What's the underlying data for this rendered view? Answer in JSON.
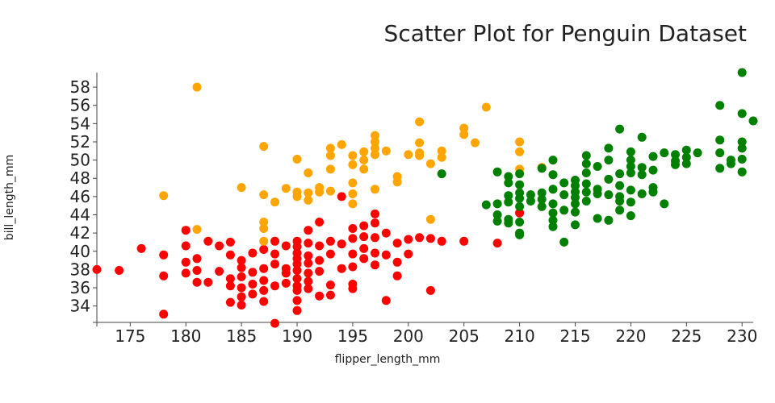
{
  "chart_data": {
    "type": "scatter",
    "title": "Scatter Plot for Penguin Dataset",
    "xlabel": "flipper_length_mm",
    "ylabel": "bill_length_mm",
    "xlim": [
      172,
      231
    ],
    "ylim": [
      32.2,
      59.6
    ],
    "xticks": [
      175,
      180,
      185,
      190,
      195,
      200,
      205,
      210,
      215,
      220,
      225,
      230
    ],
    "yticks": [
      34,
      36,
      38,
      40,
      42,
      44,
      46,
      48,
      50,
      52,
      54,
      56,
      58
    ],
    "grid": false,
    "colors": [
      "#ff0000",
      "#ffa500",
      "#008000"
    ],
    "series": [
      {
        "color": "#ff0000",
        "points": [
          [
            172,
            38.0
          ],
          [
            174,
            37.9
          ],
          [
            176,
            40.3
          ],
          [
            178,
            39.6
          ],
          [
            178,
            37.3
          ],
          [
            178,
            33.1
          ],
          [
            180,
            42.3
          ],
          [
            180,
            40.6
          ],
          [
            180,
            38.8
          ],
          [
            180,
            37.6
          ],
          [
            181,
            39.2
          ],
          [
            181,
            37.9
          ],
          [
            181,
            36.6
          ],
          [
            182,
            41.1
          ],
          [
            182,
            36.6
          ],
          [
            183,
            40.6
          ],
          [
            183,
            37.8
          ],
          [
            184,
            41.0
          ],
          [
            184,
            39.6
          ],
          [
            184,
            37.0
          ],
          [
            184,
            36.2
          ],
          [
            184,
            34.4
          ],
          [
            185,
            39.0
          ],
          [
            185,
            38.2
          ],
          [
            185,
            37.2
          ],
          [
            185,
            36.0
          ],
          [
            185,
            35.0
          ],
          [
            185,
            34.1
          ],
          [
            186,
            39.8
          ],
          [
            186,
            37.7
          ],
          [
            186,
            36.4
          ],
          [
            186,
            35.3
          ],
          [
            187,
            40.2
          ],
          [
            187,
            38.1
          ],
          [
            187,
            36.8
          ],
          [
            187,
            35.7
          ],
          [
            187,
            34.5
          ],
          [
            188,
            41.1
          ],
          [
            188,
            39.7
          ],
          [
            188,
            38.6
          ],
          [
            188,
            36.2
          ],
          [
            188,
            32.1
          ],
          [
            189,
            40.6
          ],
          [
            189,
            38.1
          ],
          [
            189,
            37.6
          ],
          [
            189,
            36.5
          ],
          [
            190,
            41.1
          ],
          [
            190,
            40.5
          ],
          [
            190,
            39.8
          ],
          [
            190,
            39.2
          ],
          [
            190,
            38.6
          ],
          [
            190,
            37.9
          ],
          [
            190,
            37.0
          ],
          [
            190,
            36.2
          ],
          [
            190,
            35.7
          ],
          [
            190,
            34.6
          ],
          [
            190,
            33.5
          ],
          [
            191,
            42.3
          ],
          [
            191,
            40.9
          ],
          [
            191,
            39.5
          ],
          [
            191,
            38.7
          ],
          [
            191,
            37.6
          ],
          [
            191,
            36.7
          ],
          [
            191,
            35.9
          ],
          [
            192,
            43.2
          ],
          [
            192,
            40.6
          ],
          [
            192,
            39.0
          ],
          [
            192,
            37.8
          ],
          [
            192,
            35.1
          ],
          [
            193,
            41.1
          ],
          [
            193,
            39.7
          ],
          [
            193,
            36.3
          ],
          [
            193,
            35.2
          ],
          [
            194,
            46.0
          ],
          [
            194,
            40.8
          ],
          [
            194,
            38.1
          ],
          [
            195,
            42.5
          ],
          [
            195,
            41.4
          ],
          [
            195,
            39.7
          ],
          [
            195,
            38.3
          ],
          [
            195,
            36.4
          ],
          [
            195,
            35.9
          ],
          [
            196,
            42.8
          ],
          [
            196,
            41.6
          ],
          [
            196,
            40.3
          ],
          [
            196,
            39.2
          ],
          [
            197,
            44.1
          ],
          [
            197,
            43.1
          ],
          [
            197,
            41.5
          ],
          [
            197,
            39.8
          ],
          [
            197,
            38.5
          ],
          [
            198,
            42.0
          ],
          [
            198,
            39.6
          ],
          [
            198,
            34.6
          ],
          [
            199,
            40.9
          ],
          [
            199,
            38.8
          ],
          [
            199,
            37.3
          ],
          [
            200,
            41.3
          ],
          [
            200,
            39.7
          ],
          [
            201,
            41.5
          ],
          [
            202,
            41.4
          ],
          [
            202,
            35.7
          ],
          [
            203,
            41.1
          ],
          [
            205,
            41.1
          ],
          [
            208,
            40.9
          ],
          [
            210,
            44.2
          ]
        ]
      },
      {
        "color": "#ffa500",
        "points": [
          [
            178,
            46.1
          ],
          [
            181,
            58.0
          ],
          [
            181,
            42.4
          ],
          [
            185,
            47.0
          ],
          [
            187,
            51.5
          ],
          [
            187,
            46.2
          ],
          [
            187,
            43.2
          ],
          [
            187,
            42.5
          ],
          [
            187,
            41.1
          ],
          [
            188,
            45.4
          ],
          [
            189,
            46.9
          ],
          [
            190,
            50.1
          ],
          [
            190,
            46.5
          ],
          [
            190,
            46.0
          ],
          [
            191,
            48.6
          ],
          [
            191,
            46.4
          ],
          [
            191,
            45.6
          ],
          [
            192,
            47.0
          ],
          [
            192,
            46.5
          ],
          [
            193,
            51.3
          ],
          [
            193,
            50.5
          ],
          [
            193,
            49.0
          ],
          [
            193,
            46.6
          ],
          [
            194,
            51.7
          ],
          [
            195,
            50.5
          ],
          [
            195,
            49.5
          ],
          [
            195,
            47.5
          ],
          [
            195,
            46.3
          ],
          [
            195,
            45.2
          ],
          [
            196,
            50.9
          ],
          [
            196,
            50.0
          ],
          [
            196,
            49.0
          ],
          [
            197,
            52.7
          ],
          [
            197,
            52.0
          ],
          [
            197,
            51.3
          ],
          [
            197,
            50.6
          ],
          [
            197,
            46.8
          ],
          [
            198,
            51.0
          ],
          [
            199,
            48.2
          ],
          [
            199,
            47.6
          ],
          [
            200,
            50.6
          ],
          [
            201,
            54.2
          ],
          [
            201,
            51.9
          ],
          [
            201,
            50.8
          ],
          [
            201,
            50.5
          ],
          [
            202,
            49.6
          ],
          [
            202,
            43.5
          ],
          [
            203,
            51.0
          ],
          [
            203,
            50.3
          ],
          [
            205,
            53.5
          ],
          [
            205,
            52.8
          ],
          [
            206,
            51.9
          ],
          [
            207,
            55.8
          ],
          [
            210,
            52.0
          ],
          [
            210,
            50.9
          ],
          [
            210,
            49.0
          ],
          [
            212,
            49.2
          ]
        ]
      },
      {
        "color": "#008000",
        "points": [
          [
            203,
            48.5
          ],
          [
            207,
            45.1
          ],
          [
            208,
            48.7
          ],
          [
            208,
            45.2
          ],
          [
            208,
            44.0
          ],
          [
            208,
            43.3
          ],
          [
            209,
            48.2
          ],
          [
            209,
            47.5
          ],
          [
            209,
            46.1
          ],
          [
            209,
            45.4
          ],
          [
            209,
            43.5
          ],
          [
            209,
            43.1
          ],
          [
            210,
            48.5
          ],
          [
            210,
            47.3
          ],
          [
            210,
            46.4
          ],
          [
            210,
            45.8
          ],
          [
            210,
            44.9
          ],
          [
            210,
            43.2
          ],
          [
            210,
            42.0
          ],
          [
            210,
            41.8
          ],
          [
            211,
            46.2
          ],
          [
            211,
            45.5
          ],
          [
            212,
            49.1
          ],
          [
            212,
            46.4
          ],
          [
            212,
            45.7
          ],
          [
            212,
            44.9
          ],
          [
            213,
            50.0
          ],
          [
            213,
            48.4
          ],
          [
            213,
            46.8
          ],
          [
            213,
            45.2
          ],
          [
            213,
            44.2
          ],
          [
            213,
            43.4
          ],
          [
            213,
            42.7
          ],
          [
            214,
            47.5
          ],
          [
            214,
            46.2
          ],
          [
            214,
            44.5
          ],
          [
            214,
            41.0
          ],
          [
            215,
            47.8
          ],
          [
            215,
            47.2
          ],
          [
            215,
            46.5
          ],
          [
            215,
            45.9
          ],
          [
            215,
            45.2
          ],
          [
            215,
            44.3
          ],
          [
            215,
            42.9
          ],
          [
            216,
            50.5
          ],
          [
            216,
            49.6
          ],
          [
            216,
            48.6
          ],
          [
            216,
            47.4
          ],
          [
            216,
            46.5
          ],
          [
            216,
            45.5
          ],
          [
            217,
            49.3
          ],
          [
            217,
            46.8
          ],
          [
            217,
            46.3
          ],
          [
            217,
            43.6
          ],
          [
            218,
            51.3
          ],
          [
            218,
            50.0
          ],
          [
            218,
            47.9
          ],
          [
            218,
            46.2
          ],
          [
            218,
            43.4
          ],
          [
            219,
            53.4
          ],
          [
            219,
            48.5
          ],
          [
            219,
            47.2
          ],
          [
            219,
            46.0
          ],
          [
            219,
            45.5
          ],
          [
            219,
            44.5
          ],
          [
            220,
            50.9
          ],
          [
            220,
            50.0
          ],
          [
            220,
            49.3
          ],
          [
            220,
            48.6
          ],
          [
            220,
            46.7
          ],
          [
            220,
            45.4
          ],
          [
            220,
            43.9
          ],
          [
            221,
            52.5
          ],
          [
            221,
            49.2
          ],
          [
            221,
            48.4
          ],
          [
            221,
            46.3
          ],
          [
            222,
            50.4
          ],
          [
            222,
            48.9
          ],
          [
            222,
            47.0
          ],
          [
            222,
            46.5
          ],
          [
            223,
            50.8
          ],
          [
            223,
            45.2
          ],
          [
            224,
            50.6
          ],
          [
            224,
            49.9
          ],
          [
            224,
            49.5
          ],
          [
            225,
            51.1
          ],
          [
            225,
            50.3
          ],
          [
            225,
            49.6
          ],
          [
            226,
            50.8
          ],
          [
            228,
            56.0
          ],
          [
            228,
            52.2
          ],
          [
            228,
            50.8
          ],
          [
            228,
            49.1
          ],
          [
            229,
            50.0
          ],
          [
            229,
            49.6
          ],
          [
            230,
            59.6
          ],
          [
            230,
            55.1
          ],
          [
            230,
            52.0
          ],
          [
            230,
            51.3
          ],
          [
            230,
            50.1
          ],
          [
            230,
            48.7
          ],
          [
            231,
            54.3
          ]
        ]
      }
    ]
  }
}
